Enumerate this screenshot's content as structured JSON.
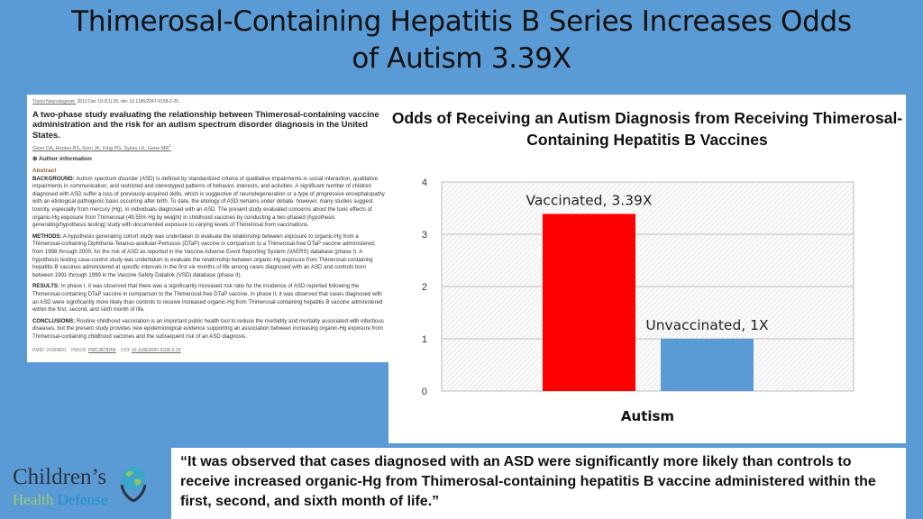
{
  "slide": {
    "title_line1": "Thimerosal-Containing Hepatitis B Series Increases Odds",
    "title_line2": "of Autism 3.39X",
    "quote": "“It was observed that cases diagnosed with an ASD were significantly more likely than controls to receive increased organic-Hg from Thimerosal-containing hepatitis B vaccine administered within the first, second, and sixth month of life.”"
  },
  "abstract": {
    "journal": "Transl Neurodegener.",
    "citation": " 2013 Dec 19;2(1):25. doi: 10.1186/2047-9158-2-25.",
    "title": "A two-phase study evaluating the relationship between Thimerosal-containing vaccine administration and the risk for an autism spectrum disorder diagnosis in the United States.",
    "authors": "Geier DA, Hooker BS, Kern JK, King PG, Sykes LK, Geier MR",
    "author_sup": "1",
    "author_info": "⊕ Author information",
    "heading": "Abstract",
    "sections": [
      {
        "label": "BACKGROUND:",
        "text": " Autism spectrum disorder (ASD) is defined by standardized criteria of qualitative impairments in social interaction, qualitative impairments in communication, and restricted and stereotyped patterns of behavior, interests, and activities. A significant number of children diagnosed with ASD suffer a loss of previously-acquired skills, which is suggestive of neurodegeneration or a type of progressive encephalopathy with an etiological pathogenic basis occurring after birth. To date, the etiology of ASD remains under debate, however, many studies suggest toxicity, especially from mercury (Hg), in individuals diagnosed with an ASD. The present study evaluated concerns about the toxic effects of organic-Hg exposure from Thimerosal (49.55% Hg by weight) in childhood vaccines by conducting a two-phased (hypothesis generating/hypothesis testing) study with documented exposure to varying levels of Thimerosal from vaccinations."
      },
      {
        "label": "METHODS:",
        "text": " A hypothesis generating cohort study was undertaken to evaluate the relationship between exposure to organic-Hg from a Thimerosal-containing Diphtheria-Tetanus-acellular-Pertussis (DTaP) vaccine in comparison to a Thimerosal-free DTaP vaccine administered, from 1998 through 2000, for the risk of ASD as reported in the Vaccine Adverse Event Reporting System (VAERS) database (phase I). A hypothesis testing case-control study was undertaken to evaluate the relationship between organic-Hg exposure from Thimerosal-containing hepatitis B vaccines administered at specific intervals in the first six months of life among cases diagnosed with an ASD and controls born between 1991 through 1999 in the Vaccine Safety Datalink (VSD) database (phase II)."
      },
      {
        "label": "RESULTS:",
        "text": " In phase I, it was observed that there was a significantly increased risk ratio for the incidence of ASD reported following the Thimerosal-containing DTaP vaccine in comparison to the Thimerosal-free DTaP vaccine. In phase II, it was observed that cases diagnosed with an ASD were significantly more likely than controls to receive increased organic-Hg from Thimerosal-containing hepatitis B vaccine administered within the first, second, and sixth month of life."
      },
      {
        "label": "CONCLUSIONS:",
        "text": " Routine childhood vaccination is an important public health tool to reduce the morbidity and mortality associated with infectious diseases, but the present study provides new epidemiological evidence supporting an association between increasing organic-Hg exposure from Thimerosal-containing childhood vaccines and the subsequent risk of an ASD diagnosis."
      }
    ],
    "pmid": "PMID: 24354891",
    "pmcid_label": "PMCID:",
    "pmcid": "PMC3878266",
    "doi_label": "DOI:",
    "doi": "10.1186/2047-9158-2-25"
  },
  "logo": {
    "line1": "Children’s",
    "health": "Health",
    "defense": "Defense"
  },
  "chart_data": {
    "type": "bar",
    "title": "Odds of Receiving an Autism Diagnosis from Receiving Thimerosal-Containing Hepatitis B Vaccines",
    "categories": [
      "Autism"
    ],
    "series": [
      {
        "name": "Vaccinated",
        "values": [
          3.39
        ],
        "label": "Vaccinated, 3.39X",
        "color": "#ff0000"
      },
      {
        "name": "Unvaccinated",
        "values": [
          1
        ],
        "label": "Unvaccinated, 1X",
        "color": "#5b9bd5"
      }
    ],
    "ylim": [
      0,
      4
    ],
    "yticks": [
      "0",
      "1",
      "2",
      "3",
      "4"
    ],
    "grid": true,
    "legend": "none"
  }
}
